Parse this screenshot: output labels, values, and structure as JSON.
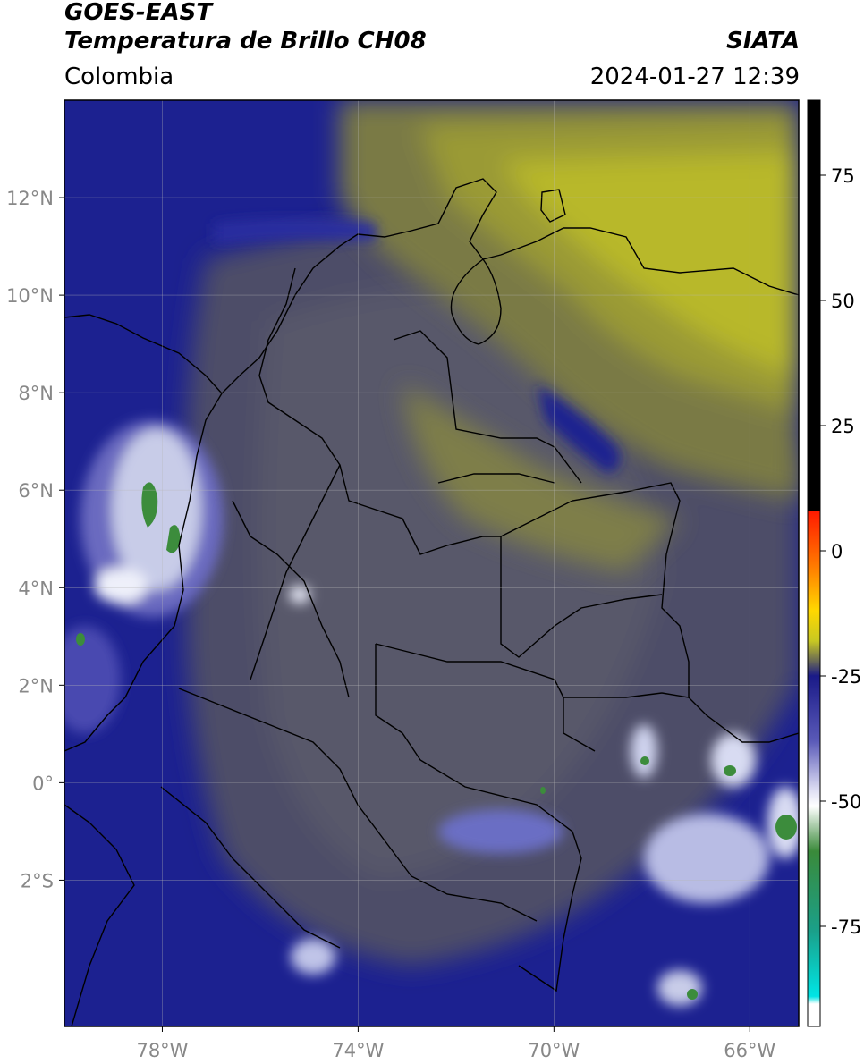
{
  "header": {
    "satellite": "GOES-EAST",
    "product": "Temperatura de Brillo CH08",
    "organization": "SIATA",
    "region": "Colombia",
    "datetime": "2024-01-27 12:39"
  },
  "map": {
    "extent": {
      "lon_min": -80,
      "lon_max": -65,
      "lat_min": -5,
      "lat_max": 14
    },
    "lon_ticks": [
      {
        "value": -78,
        "label": "78°W"
      },
      {
        "value": -74,
        "label": "74°W"
      },
      {
        "value": -70,
        "label": "70°W"
      },
      {
        "value": -66,
        "label": "66°W"
      }
    ],
    "lat_ticks": [
      {
        "value": 12,
        "label": "12°N"
      },
      {
        "value": 10,
        "label": "10°N"
      },
      {
        "value": 8,
        "label": "8°N"
      },
      {
        "value": 6,
        "label": "6°N"
      },
      {
        "value": 4,
        "label": "4°N"
      },
      {
        "value": 2,
        "label": "2°N"
      },
      {
        "value": 0,
        "label": "0°"
      },
      {
        "value": -2,
        "label": "2°S"
      }
    ],
    "gridlines": true,
    "colors": {
      "cold_blue": "#1a1f8c",
      "mid_gray": "#50506a",
      "olive": "#8f8f3a",
      "yellow": "#bcbc28",
      "cloud_white": "#e8ecf8",
      "cloud_green": "#3c8c3c"
    }
  },
  "colorbar": {
    "range": [
      -95,
      90
    ],
    "ticks": [
      {
        "value": 75,
        "label": "75"
      },
      {
        "value": 50,
        "label": "50"
      },
      {
        "value": 25,
        "label": "25"
      },
      {
        "value": 0,
        "label": "0"
      },
      {
        "value": -25,
        "label": "-25"
      },
      {
        "value": -50,
        "label": "-50"
      },
      {
        "value": -75,
        "label": "-75"
      }
    ],
    "stops": [
      {
        "value": 90,
        "color": "#000000"
      },
      {
        "value": 8,
        "color": "#000000"
      },
      {
        "value": 7.9,
        "color": "#ff1a00"
      },
      {
        "value": -3,
        "color": "#ff7a00"
      },
      {
        "value": -12,
        "color": "#ffd800"
      },
      {
        "value": -18,
        "color": "#c8c822"
      },
      {
        "value": -22,
        "color": "#6a6a55"
      },
      {
        "value": -25,
        "color": "#1a1a88"
      },
      {
        "value": -38,
        "color": "#5a5ab8"
      },
      {
        "value": -48,
        "color": "#e0e0f4"
      },
      {
        "value": -51,
        "color": "#ffffff"
      },
      {
        "value": -60,
        "color": "#3a8a3a"
      },
      {
        "value": -76,
        "color": "#1aa08a"
      },
      {
        "value": -89,
        "color": "#00e5e5"
      },
      {
        "value": -90.5,
        "color": "#ffffff"
      },
      {
        "value": -95,
        "color": "#ffffff"
      }
    ]
  }
}
